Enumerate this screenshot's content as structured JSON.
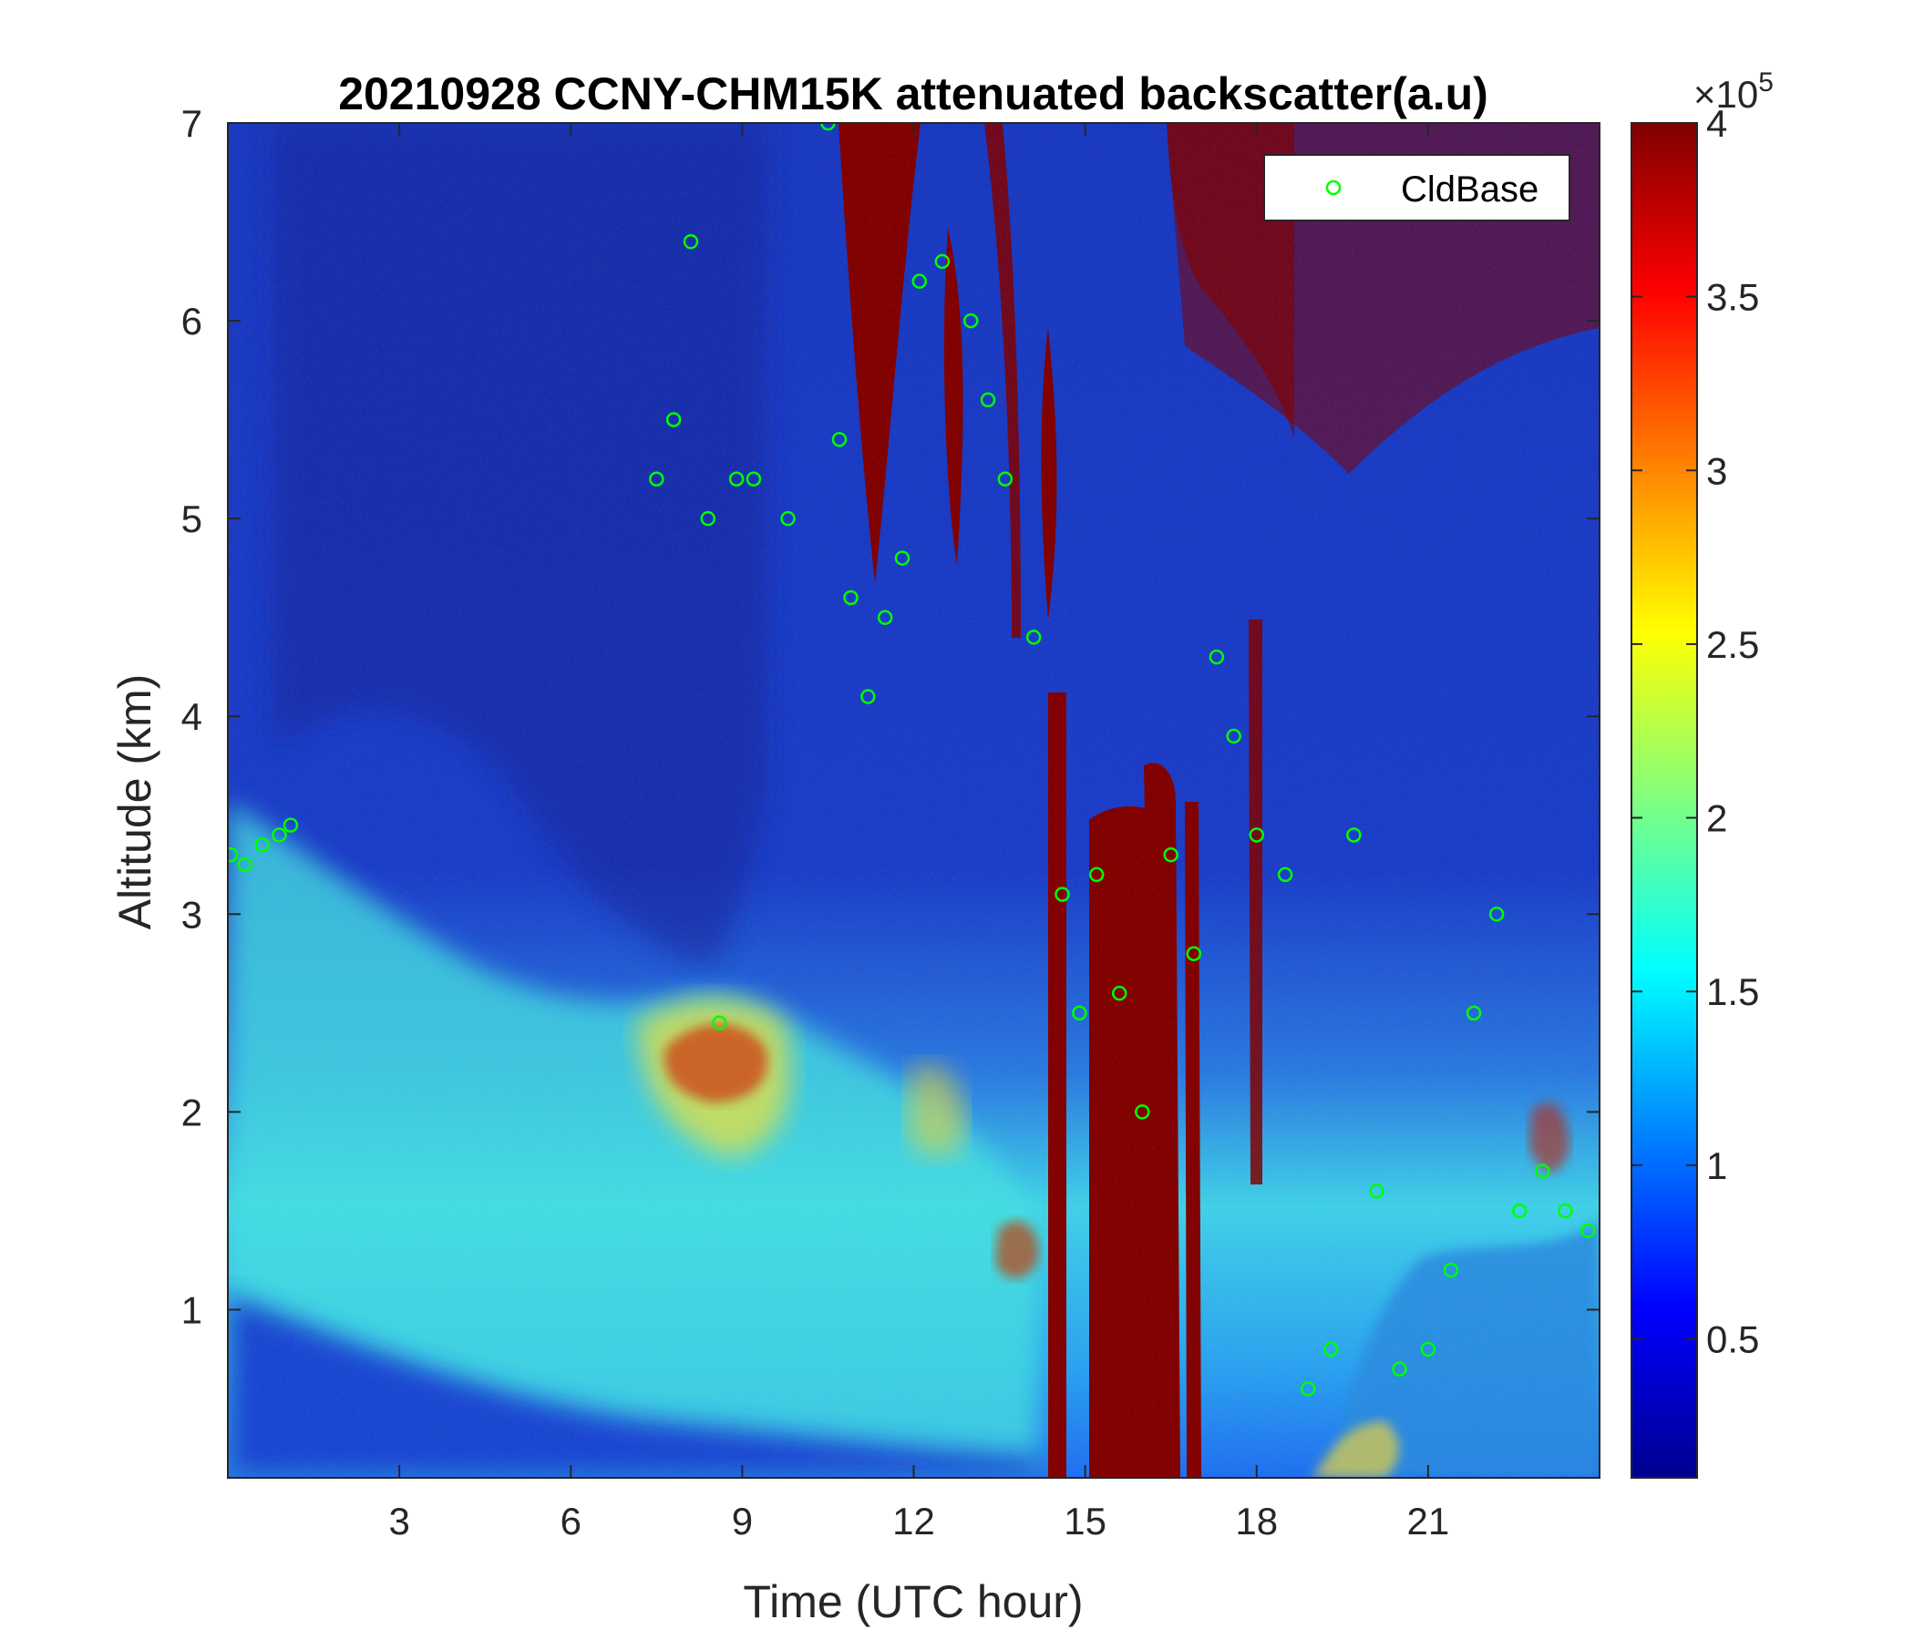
{
  "chart_data": {
    "type": "heatmap",
    "title": "20210928 CCNY-CHM15K attenuated backscatter(a.u)",
    "xlabel": "Time (UTC hour)",
    "ylabel": "Altitude (km)",
    "xlim": [
      0,
      24
    ],
    "ylim": [
      0.15,
      7
    ],
    "xticks": [
      "3",
      "6",
      "9",
      "12",
      "15",
      "18",
      "21"
    ],
    "yticks": [
      "1",
      "2",
      "3",
      "4",
      "5",
      "6",
      "7"
    ],
    "colorbar": {
      "colormap": "jet",
      "clim": [
        0.1,
        4
      ],
      "exponent_label": "×10",
      "exponent_power": "5",
      "ticks": [
        "0.5",
        "1",
        "1.5",
        "2",
        "2.5",
        "3",
        "3.5",
        "4"
      ]
    },
    "legend": {
      "location": "top-right",
      "entries": [
        "CldBase"
      ]
    },
    "series": [
      {
        "name": "CldBase",
        "marker": "o",
        "color": "#00ff00",
        "x": [
          0.05,
          0.3,
          0.6,
          0.9,
          1.1,
          7.5,
          7.8,
          8.1,
          8.4,
          8.6,
          8.9,
          9.2,
          9.8,
          10.5,
          10.7,
          10.9,
          11.2,
          11.5,
          11.8,
          12.1,
          12.5,
          13.0,
          13.3,
          13.6,
          14.1,
          14.6,
          14.9,
          15.2,
          15.6,
          16.0,
          16.5,
          16.9,
          17.3,
          17.6,
          18.0,
          18.5,
          18.9,
          19.3,
          19.7,
          20.1,
          20.5,
          21.0,
          21.4,
          21.8,
          22.2,
          22.6,
          23.0,
          23.4,
          23.8
        ],
        "y": [
          3.3,
          3.25,
          3.35,
          3.4,
          3.45,
          5.2,
          5.5,
          6.4,
          5.0,
          2.45,
          5.2,
          5.2,
          5.0,
          7.0,
          5.4,
          4.6,
          4.1,
          4.5,
          4.8,
          6.2,
          6.3,
          6.0,
          5.6,
          5.2,
          4.4,
          3.1,
          2.5,
          3.2,
          2.6,
          2.0,
          3.3,
          2.8,
          4.3,
          3.9,
          3.4,
          3.2,
          0.6,
          0.8,
          3.4,
          1.6,
          0.7,
          0.8,
          1.2,
          2.5,
          3.0,
          1.5,
          1.7,
          1.5,
          1.4
        ]
      }
    ]
  }
}
